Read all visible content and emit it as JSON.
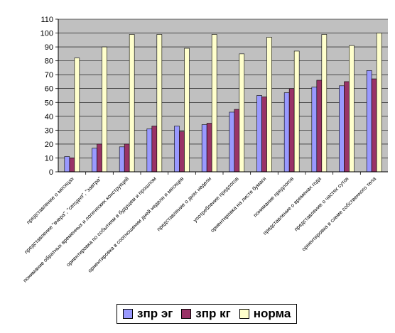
{
  "chart_data": {
    "type": "bar",
    "categories": [
      "представление о месяцах",
      "представление \"вчера\", \"сегодня\", \"завтра\"",
      "понимание обратных временных и логических конструкций",
      "ориентировка по событиям в будущем и прошлом",
      "ориентировка в соотношении дней недели и месяцев",
      "представление о днях недели",
      "употребление предлогов",
      "ориентировка на листе бумаги",
      "понимание предлогов",
      "представление о временах года",
      "представление о частях суток",
      "ориентировка в схеме собственного тела"
    ],
    "series": [
      {
        "name": "зпр эг",
        "color": "#9999ff",
        "values": [
          11,
          17,
          18,
          31,
          33,
          34,
          43,
          55,
          57,
          61,
          62,
          73
        ]
      },
      {
        "name": "зпр кг",
        "color": "#993366",
        "values": [
          10,
          20,
          20,
          33,
          29,
          35,
          45,
          54,
          60,
          66,
          65,
          67
        ]
      },
      {
        "name": "норма",
        "color": "#ffffcc",
        "values": [
          82,
          90,
          99,
          99,
          89,
          99,
          85,
          97,
          87,
          99,
          91,
          100
        ]
      }
    ],
    "ylim": [
      0,
      110
    ],
    "yticks": [
      0,
      10,
      20,
      30,
      40,
      50,
      60,
      70,
      80,
      90,
      100,
      110
    ],
    "grid": true,
    "legend_position": "bottom",
    "plot_background": "#c0c0c0"
  },
  "legend": {
    "items": [
      {
        "label": "зпр эг"
      },
      {
        "label": "зпр кг"
      },
      {
        "label": "норма"
      }
    ]
  }
}
